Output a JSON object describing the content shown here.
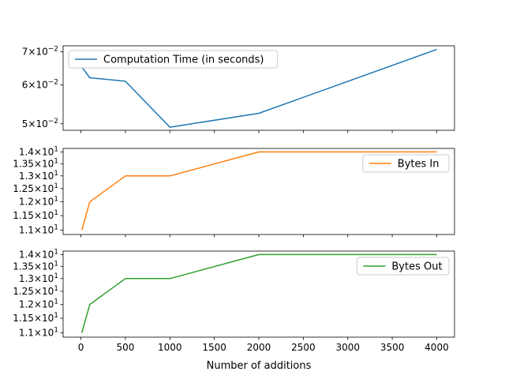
{
  "chart_data": {
    "type": "line",
    "xlabel": "Number of additions",
    "x_ticks": [
      "0",
      "500",
      "1000",
      "1500",
      "2000",
      "2500",
      "3000",
      "3500",
      "4000"
    ],
    "subplots": [
      {
        "series": [
          {
            "name": "Computation Time (in seconds)",
            "color": "#1f77b4",
            "x": [
              10,
              100,
              500,
              1000,
              2000,
              4000
            ],
            "y": [
              0.0652,
              0.062,
              0.061,
              0.0492,
              0.0525,
              0.0708
            ]
          }
        ],
        "yscale": "log",
        "ylim": [
          0.0485,
          0.072
        ],
        "y_ticks": [
          {
            "value": 0.05,
            "mant": "5",
            "times": "×",
            "base": "10",
            "exp": "−2"
          },
          {
            "value": 0.06,
            "mant": "6",
            "times": "×",
            "base": "10",
            "exp": "−2"
          },
          {
            "value": 0.07,
            "mant": "7",
            "times": "×",
            "base": "10",
            "exp": "−2"
          }
        ],
        "legend_position": "upper-left"
      },
      {
        "series": [
          {
            "name": "Bytes In",
            "color": "#ff7f0e",
            "x": [
              10,
              100,
              500,
              1000,
              2000,
              4000
            ],
            "y": [
              11.0,
              12.0,
              13.0,
              13.0,
              14.0,
              14.0
            ]
          }
        ],
        "yscale": "log",
        "ylim": [
          10.85,
          14.15
        ],
        "y_ticks": [
          {
            "value": 11.0,
            "mant": "1.1",
            "times": "×",
            "base": "10",
            "exp": "1"
          },
          {
            "value": 11.5,
            "mant": "1.15",
            "times": "×",
            "base": "10",
            "exp": "1"
          },
          {
            "value": 12.0,
            "mant": "1.2",
            "times": "×",
            "base": "10",
            "exp": "1"
          },
          {
            "value": 12.5,
            "mant": "1.25",
            "times": "×",
            "base": "10",
            "exp": "1"
          },
          {
            "value": 13.0,
            "mant": "1.3",
            "times": "×",
            "base": "10",
            "exp": "1"
          },
          {
            "value": 13.5,
            "mant": "1.35",
            "times": "×",
            "base": "10",
            "exp": "1"
          },
          {
            "value": 14.0,
            "mant": "1.4",
            "times": "×",
            "base": "10",
            "exp": "1"
          }
        ],
        "legend_position": "upper-right"
      },
      {
        "series": [
          {
            "name": "Bytes Out",
            "color": "#2ca02c",
            "x": [
              10,
              100,
              500,
              1000,
              2000,
              4000
            ],
            "y": [
              11.0,
              12.0,
              13.0,
              13.0,
              14.0,
              14.0
            ]
          }
        ],
        "yscale": "log",
        "ylim": [
          10.85,
          14.15
        ],
        "y_ticks": [
          {
            "value": 11.0,
            "mant": "1.1",
            "times": "×",
            "base": "10",
            "exp": "1"
          },
          {
            "value": 11.5,
            "mant": "1.15",
            "times": "×",
            "base": "10",
            "exp": "1"
          },
          {
            "value": 12.0,
            "mant": "1.2",
            "times": "×",
            "base": "10",
            "exp": "1"
          },
          {
            "value": 12.5,
            "mant": "1.25",
            "times": "×",
            "base": "10",
            "exp": "1"
          },
          {
            "value": 13.0,
            "mant": "1.3",
            "times": "×",
            "base": "10",
            "exp": "1"
          },
          {
            "value": 13.5,
            "mant": "1.35",
            "times": "×",
            "base": "10",
            "exp": "1"
          },
          {
            "value": 14.0,
            "mant": "1.4",
            "times": "×",
            "base": "10",
            "exp": "1"
          }
        ],
        "legend_position": "upper-right"
      }
    ],
    "x_range": [
      -200,
      4200
    ],
    "grid": false
  }
}
